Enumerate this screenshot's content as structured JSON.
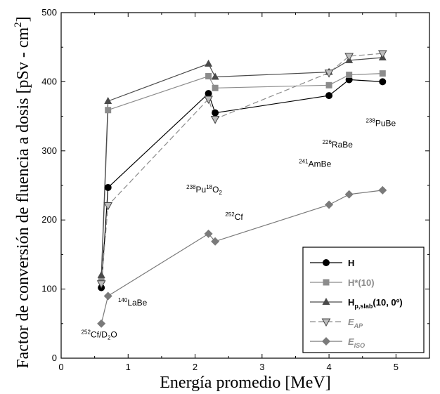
{
  "chart_data": {
    "type": "line",
    "xlabel": "Energía promedio [MeV]",
    "ylabel": "Factor de conversión de fluencia a dosis [pSv - cm",
    "ylabel_sup": "2",
    "ylabel_end": "]",
    "xlim": [
      0,
      5.5
    ],
    "ylim": [
      0,
      500
    ],
    "xticks": [
      "0",
      "1",
      "2",
      "3",
      "4",
      "5"
    ],
    "yticks": [
      "0",
      "100",
      "200",
      "300",
      "400",
      "500"
    ],
    "grid": false,
    "legend_position": "bottom-right",
    "x": [
      0.6,
      0.7,
      2.2,
      2.3,
      4.0,
      4.3,
      4.8
    ],
    "series": [
      {
        "name": "H",
        "legend_label": "H",
        "color": "#000000",
        "marker": "circle",
        "dash": "solid",
        "values": [
          102,
          247,
          383,
          355,
          380,
          403,
          400
        ]
      },
      {
        "name": "H*(10)",
        "legend_label": "H*(10)",
        "color": "#8c8c8c",
        "marker": "square",
        "dash": "solid",
        "values": [
          113,
          359,
          408,
          391,
          395,
          410,
          412
        ]
      },
      {
        "name": "Hp,slab(10, 0º)",
        "legend_main": "H",
        "legend_sub": "p,slab",
        "legend_rest": "(10, 0º)",
        "color": "#4a4a4a",
        "marker": "triangle-up",
        "dash": "solid",
        "values": [
          120,
          372,
          426,
          407,
          414,
          431,
          435
        ]
      },
      {
        "name": "EAP",
        "legend_main": "E",
        "legend_sub": "AP",
        "color": "#8c8c8c",
        "marker": "triangle-down",
        "dash": "dashed",
        "values": [
          108,
          221,
          375,
          346,
          413,
          437,
          441
        ]
      },
      {
        "name": "EISO",
        "legend_main": "E",
        "legend_sub": "ISO",
        "color": "#7a7a7a",
        "marker": "diamond",
        "dash": "solid",
        "values": [
          50,
          90,
          180,
          169,
          222,
          237,
          243
        ]
      }
    ],
    "annotations": [
      {
        "sup": "252",
        "main": "Cf/D",
        "sub": "2",
        "tail": "O",
        "x": 0.3,
        "y": 30
      },
      {
        "sup": "140",
        "main": "LaBe",
        "x": 0.85,
        "y": 76
      },
      {
        "sup": "238",
        "main": "Pu",
        "sup2": "18",
        "main2": "O",
        "sub": "2",
        "x": 1.87,
        "y": 240
      },
      {
        "sup": "252",
        "main": "Cf",
        "x": 2.45,
        "y": 200
      },
      {
        "sup": "241",
        "main": "AmBe",
        "x": 3.55,
        "y": 277
      },
      {
        "sup": "226",
        "main": "RaBe",
        "x": 3.9,
        "y": 305
      },
      {
        "sup": "238",
        "main": "PuBe",
        "x": 4.55,
        "y": 336
      }
    ]
  }
}
